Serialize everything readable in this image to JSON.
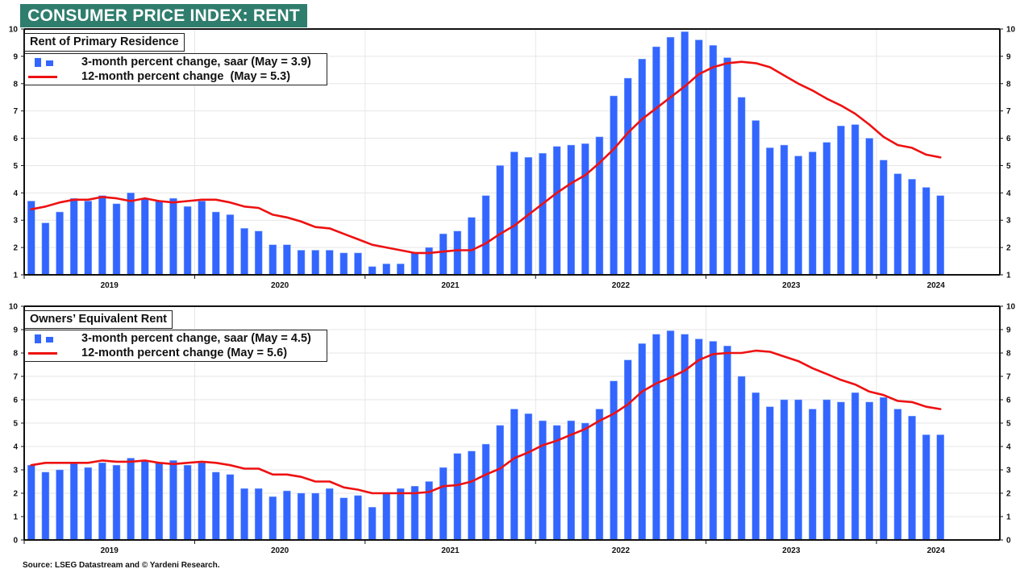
{
  "banner": {
    "title": "CONSUMER PRICE INDEX: RENT",
    "color": "#2f7d6d"
  },
  "source": "Source: LSEG Datastream and © Yardeni Research.",
  "colors": {
    "bar": "#3366ff",
    "line": "#ee1111",
    "grid": "#e6e6e6",
    "axis": "#111111"
  },
  "chart_data": [
    {
      "type": "bar",
      "title": "Rent of Primary Residence",
      "xlabel": "",
      "ylabel": "",
      "ylim": [
        1,
        10
      ],
      "yticks": [
        1,
        2,
        3,
        4,
        5,
        6,
        7,
        8,
        9,
        10
      ],
      "xticks": [
        "2019",
        "2020",
        "2021",
        "2022",
        "2023",
        "2024"
      ],
      "x_start": "2019-01",
      "frequency": "monthly",
      "grid": true,
      "legend_position": "top-left",
      "series": [
        {
          "name": "3-month percent change, saar (May = 3.9)",
          "type": "bar",
          "values": [
            3.7,
            2.9,
            3.3,
            3.8,
            3.7,
            3.9,
            3.6,
            4.0,
            3.8,
            3.7,
            3.8,
            3.5,
            3.7,
            3.3,
            3.2,
            2.7,
            2.6,
            2.1,
            2.1,
            1.9,
            1.9,
            1.9,
            1.8,
            1.8,
            1.3,
            1.4,
            1.4,
            1.8,
            2.0,
            2.5,
            2.6,
            3.1,
            3.9,
            5.0,
            5.5,
            5.3,
            5.45,
            5.7,
            5.75,
            5.8,
            6.05,
            7.55,
            8.2,
            8.9,
            9.35,
            9.7,
            9.9,
            9.6,
            9.4,
            8.95,
            7.5,
            6.65,
            5.65,
            5.75,
            5.35,
            5.5,
            5.85,
            6.45,
            6.5,
            6.0,
            5.2,
            4.7,
            4.5,
            4.2,
            3.9
          ]
        },
        {
          "name": "12-month percent change  (May = 5.3)",
          "type": "line",
          "values": [
            3.4,
            3.5,
            3.65,
            3.75,
            3.75,
            3.85,
            3.8,
            3.7,
            3.8,
            3.7,
            3.65,
            3.7,
            3.75,
            3.75,
            3.65,
            3.5,
            3.45,
            3.2,
            3.1,
            2.95,
            2.75,
            2.7,
            2.5,
            2.3,
            2.1,
            2.0,
            1.9,
            1.8,
            1.8,
            1.85,
            1.9,
            1.9,
            2.15,
            2.5,
            2.8,
            3.2,
            3.6,
            4.0,
            4.35,
            4.65,
            5.1,
            5.6,
            6.2,
            6.7,
            7.1,
            7.5,
            7.9,
            8.35,
            8.6,
            8.75,
            8.8,
            8.75,
            8.6,
            8.3,
            8.0,
            7.75,
            7.45,
            7.2,
            6.9,
            6.5,
            6.05,
            5.75,
            5.65,
            5.4,
            5.3
          ]
        }
      ]
    },
    {
      "type": "bar",
      "title": "Owners’ Equivalent Rent",
      "xlabel": "",
      "ylabel": "",
      "ylim": [
        0,
        10
      ],
      "yticks": [
        0,
        1,
        2,
        3,
        4,
        5,
        6,
        7,
        8,
        9,
        10
      ],
      "xticks": [
        "2019",
        "2020",
        "2021",
        "2022",
        "2023",
        "2024"
      ],
      "x_start": "2019-01",
      "frequency": "monthly",
      "grid": true,
      "legend_position": "top-left",
      "series": [
        {
          "name": "3-month percent change, saar (May = 4.5)",
          "type": "bar",
          "values": [
            3.2,
            2.9,
            3.0,
            3.3,
            3.1,
            3.3,
            3.2,
            3.5,
            3.4,
            3.3,
            3.4,
            3.2,
            3.3,
            2.9,
            2.8,
            2.2,
            2.2,
            1.85,
            2.1,
            2.0,
            2.0,
            2.2,
            1.8,
            1.9,
            1.4,
            2.0,
            2.2,
            2.3,
            2.5,
            3.1,
            3.7,
            3.8,
            4.1,
            4.9,
            5.6,
            5.4,
            5.1,
            4.9,
            5.1,
            5.0,
            5.6,
            6.8,
            7.7,
            8.4,
            8.8,
            8.95,
            8.8,
            8.6,
            8.5,
            8.3,
            7.0,
            6.3,
            5.7,
            6.0,
            6.0,
            5.6,
            6.0,
            5.9,
            6.3,
            5.9,
            6.1,
            5.6,
            5.3,
            4.5,
            4.5
          ]
        },
        {
          "name": "12-month percent change (May = 5.6)",
          "type": "line",
          "values": [
            3.2,
            3.3,
            3.3,
            3.3,
            3.3,
            3.4,
            3.35,
            3.35,
            3.4,
            3.3,
            3.25,
            3.3,
            3.35,
            3.3,
            3.2,
            3.05,
            3.05,
            2.8,
            2.8,
            2.7,
            2.5,
            2.5,
            2.25,
            2.15,
            2.0,
            2.0,
            2.0,
            2.0,
            2.05,
            2.3,
            2.35,
            2.5,
            2.8,
            3.05,
            3.5,
            3.75,
            4.05,
            4.25,
            4.5,
            4.75,
            5.1,
            5.4,
            5.8,
            6.35,
            6.7,
            6.95,
            7.25,
            7.7,
            7.95,
            8.0,
            8.0,
            8.1,
            8.05,
            7.85,
            7.65,
            7.35,
            7.1,
            6.85,
            6.65,
            6.35,
            6.2,
            5.95,
            5.9,
            5.7,
            5.6
          ]
        }
      ]
    }
  ]
}
